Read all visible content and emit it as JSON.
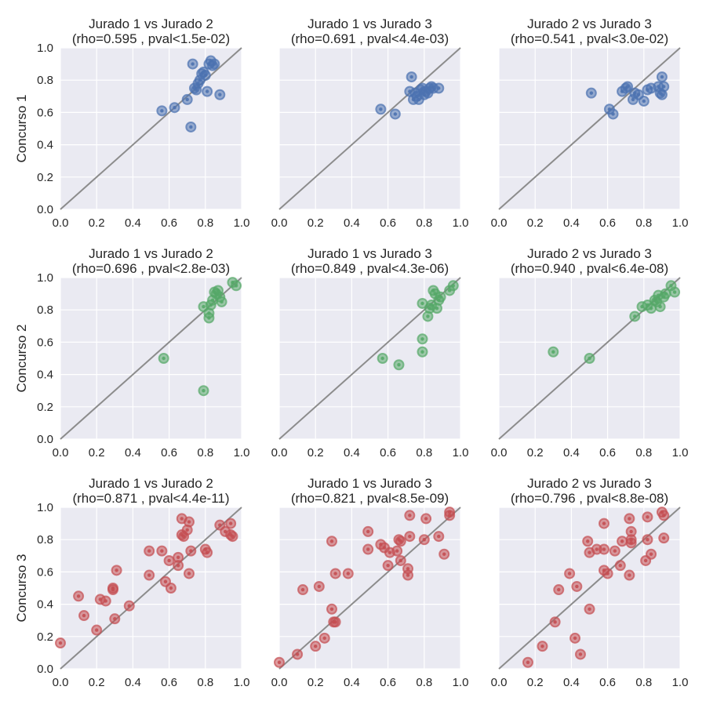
{
  "chart_data": {
    "type": "scatter",
    "style": {
      "background": "#EAEAF2",
      "grid": true,
      "grid_color": "#FFFFFF",
      "diagonal_color": "#8C8C8C",
      "row_colors": [
        "#4C72B0",
        "#55A868",
        "#C44E52"
      ]
    },
    "xlim": [
      0,
      1
    ],
    "ylim": [
      0,
      1
    ],
    "ticks": [
      "0.0",
      "0.2",
      "0.4",
      "0.6",
      "0.8",
      "1.0"
    ],
    "rows": [
      {
        "ylabel": "Concurso 1",
        "panels": [
          {
            "title": "Jurado 1 vs  Jurado 2",
            "subtitle": "(rho=0.595 , pval<1.5e-02)",
            "points": [
              [
                0.56,
                0.61
              ],
              [
                0.63,
                0.63
              ],
              [
                0.7,
                0.68
              ],
              [
                0.72,
                0.51
              ],
              [
                0.73,
                0.9
              ],
              [
                0.74,
                0.75
              ],
              [
                0.75,
                0.74
              ],
              [
                0.76,
                0.78
              ],
              [
                0.77,
                0.8
              ],
              [
                0.78,
                0.84
              ],
              [
                0.79,
                0.85
              ],
              [
                0.8,
                0.83
              ],
              [
                0.81,
                0.73
              ],
              [
                0.82,
                0.9
              ],
              [
                0.83,
                0.92
              ],
              [
                0.84,
                0.89
              ],
              [
                0.85,
                0.9
              ],
              [
                0.88,
                0.71
              ]
            ]
          },
          {
            "title": "Jurado 1 vs  Jurado 3",
            "subtitle": "(rho=0.691 , pval<4.4e-03)",
            "points": [
              [
                0.56,
                0.62
              ],
              [
                0.64,
                0.59
              ],
              [
                0.72,
                0.73
              ],
              [
                0.73,
                0.82
              ],
              [
                0.74,
                0.68
              ],
              [
                0.75,
                0.72
              ],
              [
                0.76,
                0.7
              ],
              [
                0.77,
                0.68
              ],
              [
                0.78,
                0.74
              ],
              [
                0.79,
                0.75
              ],
              [
                0.8,
                0.71
              ],
              [
                0.81,
                0.73
              ],
              [
                0.82,
                0.72
              ],
              [
                0.83,
                0.75
              ],
              [
                0.84,
                0.76
              ],
              [
                0.85,
                0.75
              ],
              [
                0.88,
                0.75
              ]
            ]
          },
          {
            "title": "Jurado 2 vs  Jurado 3",
            "subtitle": "(rho=0.541 , pval<3.0e-02)",
            "points": [
              [
                0.51,
                0.72
              ],
              [
                0.61,
                0.62
              ],
              [
                0.63,
                0.59
              ],
              [
                0.68,
                0.73
              ],
              [
                0.7,
                0.75
              ],
              [
                0.71,
                0.76
              ],
              [
                0.74,
                0.68
              ],
              [
                0.75,
                0.72
              ],
              [
                0.77,
                0.71
              ],
              [
                0.8,
                0.67
              ],
              [
                0.82,
                0.74
              ],
              [
                0.84,
                0.75
              ],
              [
                0.88,
                0.76
              ],
              [
                0.89,
                0.72
              ],
              [
                0.9,
                0.71
              ],
              [
                0.9,
                0.82
              ],
              [
                0.91,
                0.76
              ]
            ]
          }
        ]
      },
      {
        "ylabel": "Concurso 2",
        "panels": [
          {
            "title": "Jurado 1 vs  Jurado 2",
            "subtitle": "(rho=0.696 , pval<2.8e-03)",
            "points": [
              [
                0.57,
                0.5
              ],
              [
                0.79,
                0.3
              ],
              [
                0.79,
                0.82
              ],
              [
                0.82,
                0.75
              ],
              [
                0.82,
                0.78
              ],
              [
                0.83,
                0.83
              ],
              [
                0.84,
                0.86
              ],
              [
                0.85,
                0.91
              ],
              [
                0.86,
                0.9
              ],
              [
                0.87,
                0.92
              ],
              [
                0.88,
                0.88
              ],
              [
                0.89,
                0.85
              ],
              [
                0.95,
                0.97
              ],
              [
                0.97,
                0.95
              ]
            ]
          },
          {
            "title": "Jurado 1 vs  Jurado 3",
            "subtitle": "(rho=0.849 , pval<4.3e-06)",
            "points": [
              [
                0.57,
                0.5
              ],
              [
                0.66,
                0.46
              ],
              [
                0.79,
                0.62
              ],
              [
                0.79,
                0.54
              ],
              [
                0.79,
                0.84
              ],
              [
                0.82,
                0.76
              ],
              [
                0.83,
                0.81
              ],
              [
                0.84,
                0.83
              ],
              [
                0.85,
                0.92
              ],
              [
                0.86,
                0.9
              ],
              [
                0.87,
                0.81
              ],
              [
                0.88,
                0.86
              ],
              [
                0.89,
                0.88
              ],
              [
                0.94,
                0.92
              ],
              [
                0.96,
                0.95
              ]
            ]
          },
          {
            "title": "Jurado 2 vs  Jurado 3",
            "subtitle": "(rho=0.940 , pval<6.4e-08)",
            "points": [
              [
                0.3,
                0.54
              ],
              [
                0.5,
                0.5
              ],
              [
                0.75,
                0.76
              ],
              [
                0.79,
                0.82
              ],
              [
                0.82,
                0.83
              ],
              [
                0.84,
                0.81
              ],
              [
                0.86,
                0.86
              ],
              [
                0.87,
                0.85
              ],
              [
                0.88,
                0.89
              ],
              [
                0.89,
                0.82
              ],
              [
                0.91,
                0.88
              ],
              [
                0.92,
                0.9
              ],
              [
                0.95,
                0.95
              ],
              [
                0.97,
                0.91
              ]
            ]
          }
        ]
      },
      {
        "ylabel": "Concurso 3",
        "panels": [
          {
            "title": "Jurado 1 vs  Jurado 2",
            "subtitle": "(rho=0.871 , pval<4.4e-11)",
            "points": [
              [
                0.0,
                0.16
              ],
              [
                0.1,
                0.45
              ],
              [
                0.13,
                0.33
              ],
              [
                0.2,
                0.24
              ],
              [
                0.22,
                0.43
              ],
              [
                0.25,
                0.42
              ],
              [
                0.29,
                0.5
              ],
              [
                0.29,
                0.49
              ],
              [
                0.3,
                0.31
              ],
              [
                0.31,
                0.61
              ],
              [
                0.38,
                0.39
              ],
              [
                0.49,
                0.73
              ],
              [
                0.49,
                0.58
              ],
              [
                0.56,
                0.73
              ],
              [
                0.58,
                0.54
              ],
              [
                0.6,
                0.67
              ],
              [
                0.61,
                0.5
              ],
              [
                0.65,
                0.64
              ],
              [
                0.65,
                0.69
              ],
              [
                0.67,
                0.83
              ],
              [
                0.67,
                0.93
              ],
              [
                0.68,
                0.82
              ],
              [
                0.7,
                0.86
              ],
              [
                0.71,
                0.59
              ],
              [
                0.71,
                0.91
              ],
              [
                0.72,
                0.73
              ],
              [
                0.8,
                0.74
              ],
              [
                0.81,
                0.72
              ],
              [
                0.88,
                0.89
              ],
              [
                0.91,
                0.85
              ],
              [
                0.94,
                0.9
              ],
              [
                0.94,
                0.83
              ],
              [
                0.95,
                0.82
              ]
            ]
          },
          {
            "title": "Jurado 1 vs  Jurado 3",
            "subtitle": "(rho=0.821 , pval<8.5e-09)",
            "points": [
              [
                0.0,
                0.04
              ],
              [
                0.1,
                0.09
              ],
              [
                0.13,
                0.49
              ],
              [
                0.2,
                0.14
              ],
              [
                0.22,
                0.51
              ],
              [
                0.25,
                0.19
              ],
              [
                0.29,
                0.37
              ],
              [
                0.29,
                0.79
              ],
              [
                0.3,
                0.29
              ],
              [
                0.31,
                0.29
              ],
              [
                0.31,
                0.59
              ],
              [
                0.38,
                0.59
              ],
              [
                0.49,
                0.85
              ],
              [
                0.49,
                0.74
              ],
              [
                0.56,
                0.77
              ],
              [
                0.58,
                0.75
              ],
              [
                0.6,
                0.64
              ],
              [
                0.61,
                0.72
              ],
              [
                0.65,
                0.73
              ],
              [
                0.66,
                0.8
              ],
              [
                0.67,
                0.79
              ],
              [
                0.67,
                0.67
              ],
              [
                0.71,
                0.62
              ],
              [
                0.71,
                0.58
              ],
              [
                0.72,
                0.95
              ],
              [
                0.72,
                0.82
              ],
              [
                0.8,
                0.8
              ],
              [
                0.81,
                0.93
              ],
              [
                0.88,
                0.82
              ],
              [
                0.91,
                0.71
              ],
              [
                0.94,
                0.97
              ],
              [
                0.94,
                0.95
              ]
            ]
          },
          {
            "title": "Jurado 2 vs  Jurado 3",
            "subtitle": "(rho=0.796 , pval<8.8e-08)",
            "points": [
              [
                0.16,
                0.04
              ],
              [
                0.24,
                0.14
              ],
              [
                0.31,
                0.29
              ],
              [
                0.33,
                0.49
              ],
              [
                0.39,
                0.59
              ],
              [
                0.42,
                0.19
              ],
              [
                0.43,
                0.51
              ],
              [
                0.45,
                0.09
              ],
              [
                0.49,
                0.79
              ],
              [
                0.5,
                0.72
              ],
              [
                0.5,
                0.37
              ],
              [
                0.54,
                0.74
              ],
              [
                0.58,
                0.74
              ],
              [
                0.58,
                0.61
              ],
              [
                0.58,
                0.9
              ],
              [
                0.6,
                0.59
              ],
              [
                0.64,
                0.73
              ],
              [
                0.67,
                0.64
              ],
              [
                0.68,
                0.79
              ],
              [
                0.72,
                0.93
              ],
              [
                0.72,
                0.58
              ],
              [
                0.73,
                0.85
              ],
              [
                0.73,
                0.78
              ],
              [
                0.73,
                0.8
              ],
              [
                0.81,
                0.67
              ],
              [
                0.82,
                0.8
              ],
              [
                0.82,
                0.94
              ],
              [
                0.84,
                0.71
              ],
              [
                0.9,
                0.97
              ],
              [
                0.91,
                0.81
              ],
              [
                0.91,
                0.95
              ]
            ]
          }
        ]
      }
    ]
  }
}
